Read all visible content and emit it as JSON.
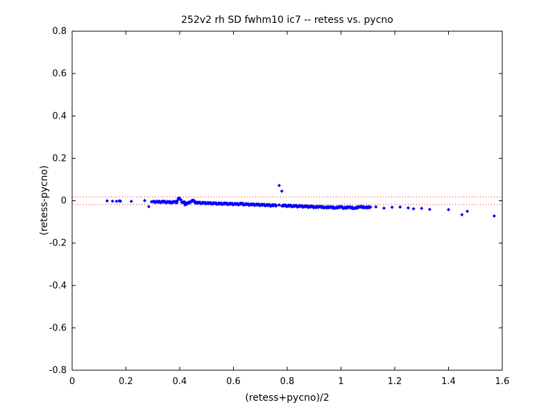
{
  "chart_data": {
    "type": "scatter",
    "title": "252v2 rh SD fwhm10 ic7 -- retess vs. pycno",
    "xlabel": "(retess+pycno)/2",
    "ylabel": "(retess-pycno)",
    "xlim": [
      0,
      1.6
    ],
    "ylim": [
      -0.8,
      0.8
    ],
    "xticks": [
      0,
      0.2,
      0.4,
      0.6,
      0.8,
      1,
      1.2,
      1.4,
      1.6
    ],
    "xtick_labels": [
      "0",
      "0.2",
      "0.4",
      "0.6",
      "0.8",
      "1",
      "1.2",
      "1.4",
      "1.6"
    ],
    "yticks": [
      -0.8,
      -0.6,
      -0.4,
      -0.2,
      0,
      0.2,
      0.4,
      0.6,
      0.8
    ],
    "ytick_labels": [
      "-0.8",
      "-0.6",
      "-0.4",
      "-0.2",
      "0",
      "0.2",
      "0.4",
      "0.6",
      "0.8"
    ],
    "grid": false,
    "legend": "none",
    "marker_color": "#0000ff",
    "reference_line_color": "#ff0000",
    "reference_lines_y": [
      0.018,
      -0.018
    ],
    "points": [
      [
        0.13,
        -0.001
      ],
      [
        0.15,
        -0.002
      ],
      [
        0.165,
        -0.003
      ],
      [
        0.175,
        -0.001
      ],
      [
        0.18,
        -0.002
      ],
      [
        0.22,
        -0.003
      ],
      [
        0.27,
        0.001
      ],
      [
        0.285,
        -0.028
      ],
      [
        0.295,
        -0.005
      ],
      [
        0.3,
        -0.004
      ],
      [
        0.31,
        -0.006
      ],
      [
        0.32,
        -0.004
      ],
      [
        0.33,
        -0.007
      ],
      [
        0.34,
        -0.003
      ],
      [
        0.35,
        -0.008
      ],
      [
        0.36,
        -0.005
      ],
      [
        0.37,
        -0.009
      ],
      [
        0.38,
        -0.004
      ],
      [
        0.39,
        -0.008
      ],
      [
        0.395,
        0.012
      ],
      [
        0.4,
        0.011
      ],
      [
        0.41,
        -0.009
      ],
      [
        0.42,
        -0.006
      ],
      [
        0.42,
        -0.02
      ],
      [
        0.43,
        -0.01
      ],
      [
        0.44,
        -0.007
      ],
      [
        0.45,
        0.003
      ],
      [
        0.46,
        -0.011
      ],
      [
        0.47,
        -0.008
      ],
      [
        0.48,
        -0.012
      ],
      [
        0.49,
        -0.009
      ],
      [
        0.5,
        -0.013
      ],
      [
        0.51,
        -0.01
      ],
      [
        0.52,
        -0.014
      ],
      [
        0.53,
        -0.011
      ],
      [
        0.54,
        -0.015
      ],
      [
        0.55,
        -0.012
      ],
      [
        0.56,
        -0.016
      ],
      [
        0.57,
        -0.011
      ],
      [
        0.58,
        -0.017
      ],
      [
        0.59,
        -0.013
      ],
      [
        0.6,
        -0.017
      ],
      [
        0.61,
        -0.014
      ],
      [
        0.62,
        -0.018
      ],
      [
        0.63,
        -0.012
      ],
      [
        0.64,
        -0.019
      ],
      [
        0.65,
        -0.015
      ],
      [
        0.66,
        -0.02
      ],
      [
        0.67,
        -0.016
      ],
      [
        0.68,
        -0.02
      ],
      [
        0.69,
        -0.017
      ],
      [
        0.7,
        -0.021
      ],
      [
        0.71,
        -0.018
      ],
      [
        0.72,
        -0.022
      ],
      [
        0.73,
        -0.019
      ],
      [
        0.74,
        -0.024
      ],
      [
        0.75,
        -0.02
      ],
      [
        0.77,
        0.072
      ],
      [
        0.78,
        0.045
      ],
      [
        0.76,
        -0.023
      ],
      [
        0.77,
        -0.02
      ],
      [
        0.78,
        -0.025
      ],
      [
        0.79,
        -0.021
      ],
      [
        0.8,
        -0.026
      ],
      [
        0.81,
        -0.022
      ],
      [
        0.82,
        -0.027
      ],
      [
        0.83,
        -0.023
      ],
      [
        0.84,
        -0.028
      ],
      [
        0.85,
        -0.024
      ],
      [
        0.86,
        -0.029
      ],
      [
        0.87,
        -0.025
      ],
      [
        0.88,
        -0.03
      ],
      [
        0.89,
        -0.026
      ],
      [
        0.9,
        -0.031
      ],
      [
        0.92,
        -0.028
      ],
      [
        0.94,
        -0.032
      ],
      [
        0.96,
        -0.03
      ],
      [
        0.98,
        -0.034
      ],
      [
        1.0,
        -0.028
      ],
      [
        1.01,
        -0.035
      ],
      [
        1.03,
        -0.03
      ],
      [
        1.05,
        -0.036
      ],
      [
        1.07,
        -0.028
      ],
      [
        1.09,
        -0.032
      ],
      [
        1.11,
        -0.03
      ],
      [
        1.13,
        -0.029
      ],
      [
        1.16,
        -0.035
      ],
      [
        1.19,
        -0.031
      ],
      [
        1.22,
        -0.03
      ],
      [
        1.25,
        -0.034
      ],
      [
        1.27,
        -0.038
      ],
      [
        1.3,
        -0.036
      ],
      [
        1.33,
        -0.041
      ],
      [
        1.4,
        -0.042
      ],
      [
        1.45,
        -0.066
      ],
      [
        1.47,
        -0.05
      ],
      [
        1.57,
        -0.072
      ]
    ]
  }
}
